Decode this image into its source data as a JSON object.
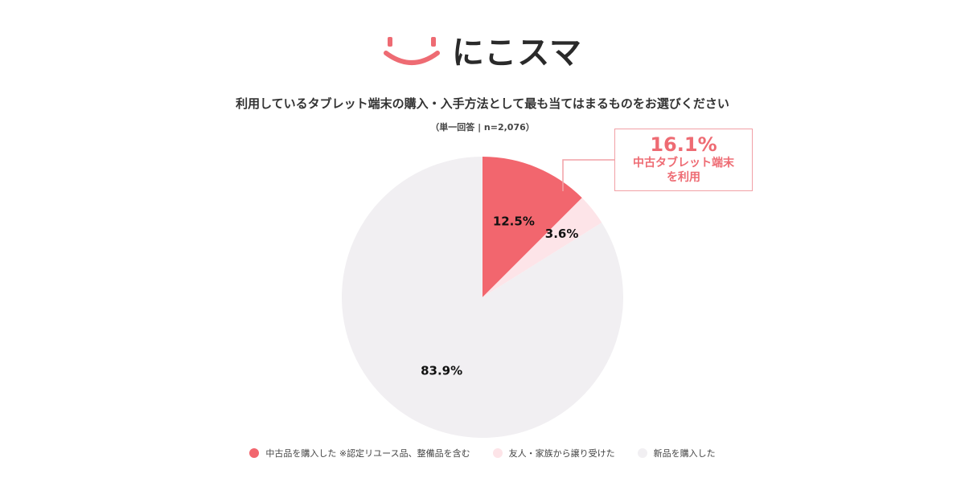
{
  "header": {
    "logo_text": "にこスマ",
    "logo_icon": "smile-logo-icon",
    "logo_color": "#ee6b73"
  },
  "callout": {
    "value": "16.1%",
    "line1": "中古タブレット端末",
    "line2": "を利用"
  },
  "chart_data": {
    "type": "pie",
    "title": "利用しているタブレット端末の購入・入手方法として最も当てはまるものをお選びください",
    "subtitle": "（単一回答 | n=2,076）",
    "slices": [
      {
        "label": "中古品を購入した ※認定リユース品、整備品を含む",
        "value": 12.5,
        "display": "12.5%",
        "color": "#f2666e"
      },
      {
        "label": "友人・家族から譲り受けた",
        "value": 3.6,
        "display": "3.6%",
        "color": "#fde4e8"
      },
      {
        "label": "新品を購入した",
        "value": 83.9,
        "display": "83.9%",
        "color": "#f1eff2"
      }
    ],
    "legend_position": "bottom"
  }
}
